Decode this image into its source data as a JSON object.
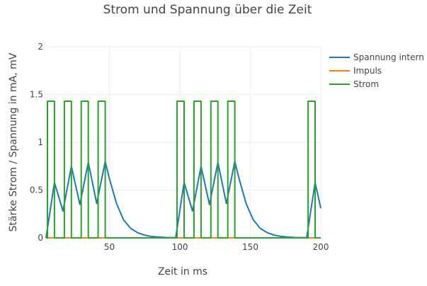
{
  "chart_data": {
    "type": "line",
    "title": "Strom und Spannung über die Zeit",
    "xlabel": "Zeit in ms",
    "ylabel": "Stärke Strom / Spannung in mA, mV",
    "xlim": [
      5,
      200
    ],
    "ylim": [
      0,
      2
    ],
    "xticks": [
      50,
      100,
      150,
      200
    ],
    "yticks": [
      0,
      0.5,
      1,
      1.5,
      2
    ],
    "grid": true,
    "legend": "right",
    "series": [
      {
        "name": "Spannung intern",
        "color": "#1f77b4",
        "points": [
          [
            5,
            0
          ],
          [
            11,
            0.58
          ],
          [
            17,
            0.28
          ],
          [
            23,
            0.75
          ],
          [
            29,
            0.35
          ],
          [
            35,
            0.79
          ],
          [
            41,
            0.36
          ],
          [
            47,
            0.8
          ],
          [
            50,
            0.62
          ],
          [
            55,
            0.36
          ],
          [
            60,
            0.19
          ],
          [
            65,
            0.1
          ],
          [
            70,
            0.054
          ],
          [
            75,
            0.028
          ],
          [
            80,
            0.015
          ],
          [
            85,
            0.008
          ],
          [
            90,
            0.004
          ],
          [
            97,
            0.002
          ],
          [
            103,
            0.58
          ],
          [
            109,
            0.28
          ],
          [
            115,
            0.75
          ],
          [
            121,
            0.35
          ],
          [
            127,
            0.79
          ],
          [
            133,
            0.36
          ],
          [
            139,
            0.8
          ],
          [
            142,
            0.62
          ],
          [
            147,
            0.36
          ],
          [
            152,
            0.19
          ],
          [
            157,
            0.1
          ],
          [
            162,
            0.054
          ],
          [
            167,
            0.028
          ],
          [
            172,
            0.015
          ],
          [
            177,
            0.008
          ],
          [
            182,
            0.004
          ],
          [
            190,
            0.002
          ],
          [
            196,
            0.58
          ],
          [
            200,
            0.31
          ]
        ]
      },
      {
        "name": "Impuls",
        "color": "#ff7f0e",
        "points": [
          [
            5,
            0
          ],
          [
            200,
            0
          ]
        ]
      },
      {
        "name": "Strom",
        "color": "#2ca02c",
        "points": [
          [
            5,
            0
          ],
          [
            6,
            0
          ],
          [
            6,
            1.43
          ],
          [
            11,
            1.43
          ],
          [
            11,
            0
          ],
          [
            18,
            0
          ],
          [
            18,
            1.43
          ],
          [
            23,
            1.43
          ],
          [
            23,
            0
          ],
          [
            30,
            0
          ],
          [
            30,
            1.43
          ],
          [
            35,
            1.43
          ],
          [
            35,
            0
          ],
          [
            42,
            0
          ],
          [
            42,
            1.43
          ],
          [
            47,
            1.43
          ],
          [
            47,
            0
          ],
          [
            98,
            0
          ],
          [
            98,
            1.43
          ],
          [
            103,
            1.43
          ],
          [
            103,
            0
          ],
          [
            110,
            0
          ],
          [
            110,
            1.43
          ],
          [
            115,
            1.43
          ],
          [
            115,
            0
          ],
          [
            122,
            0
          ],
          [
            122,
            1.43
          ],
          [
            127,
            1.43
          ],
          [
            127,
            0
          ],
          [
            134,
            0
          ],
          [
            134,
            1.43
          ],
          [
            139,
            1.43
          ],
          [
            139,
            0
          ],
          [
            191,
            0
          ],
          [
            191,
            1.43
          ],
          [
            196,
            1.43
          ],
          [
            196,
            0
          ],
          [
            200,
            0
          ]
        ]
      }
    ]
  }
}
